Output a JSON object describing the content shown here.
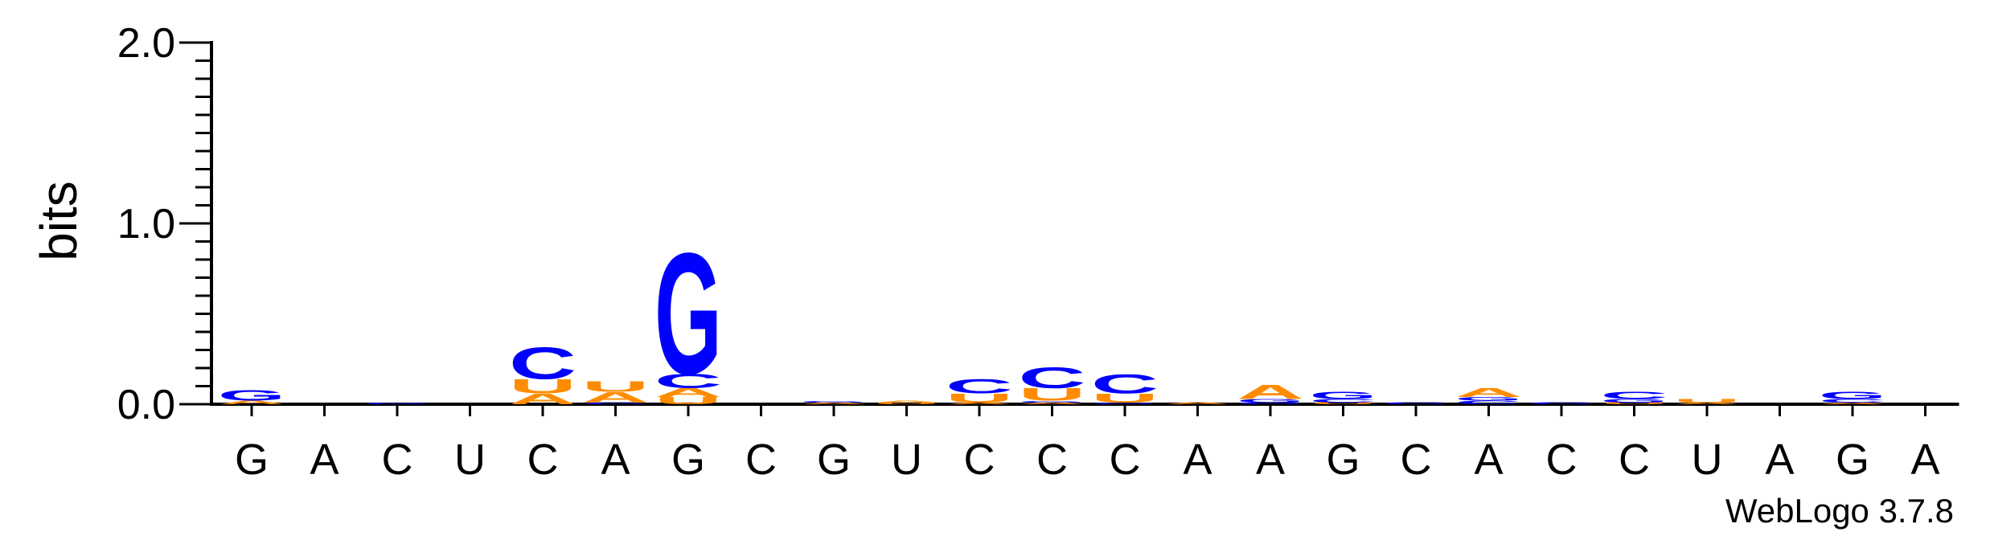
{
  "chart_data": {
    "type": "sequence-logo",
    "ylabel": "bits",
    "ylim": [
      0,
      2.0
    ],
    "yticks": [
      "0.0",
      "1.0",
      "2.0"
    ],
    "colors": {
      "G": "#0000ff",
      "C": "#0000ff",
      "A": "#ff8c00",
      "U": "#ff8c00"
    },
    "positions": [
      {
        "label": "G",
        "stack": [
          {
            "base": "A",
            "bits": 0.02
          },
          {
            "base": "G",
            "bits": 0.06
          }
        ]
      },
      {
        "label": "A",
        "stack": []
      },
      {
        "label": "C",
        "stack": [
          {
            "base": "G",
            "bits": 0.01
          }
        ]
      },
      {
        "label": "U",
        "stack": []
      },
      {
        "label": "C",
        "stack": [
          {
            "base": "A",
            "bits": 0.06
          },
          {
            "base": "U",
            "bits": 0.08
          },
          {
            "base": "C",
            "bits": 0.18
          }
        ]
      },
      {
        "label": "A",
        "stack": [
          {
            "base": "C",
            "bits": 0.01
          },
          {
            "base": "A",
            "bits": 0.06
          },
          {
            "base": "U",
            "bits": 0.06
          }
        ]
      },
      {
        "label": "G",
        "stack": [
          {
            "base": "U",
            "bits": 0.04
          },
          {
            "base": "A",
            "bits": 0.05
          },
          {
            "base": "C",
            "bits": 0.08
          },
          {
            "base": "G",
            "bits": 0.69
          }
        ]
      },
      {
        "label": "C",
        "stack": []
      },
      {
        "label": "G",
        "stack": [
          {
            "base": "A",
            "bits": 0.01
          },
          {
            "base": "G",
            "bits": 0.01
          }
        ]
      },
      {
        "label": "U",
        "stack": [
          {
            "base": "U",
            "bits": 0.01
          },
          {
            "base": "A",
            "bits": 0.01
          }
        ]
      },
      {
        "label": "C",
        "stack": [
          {
            "base": "A",
            "bits": 0.01
          },
          {
            "base": "U",
            "bits": 0.05
          },
          {
            "base": "C",
            "bits": 0.08
          }
        ]
      },
      {
        "label": "C",
        "stack": [
          {
            "base": "A",
            "bits": 0.01
          },
          {
            "base": "G",
            "bits": 0.01
          },
          {
            "base": "U",
            "bits": 0.07
          },
          {
            "base": "C",
            "bits": 0.12
          }
        ]
      },
      {
        "label": "C",
        "stack": [
          {
            "base": "G",
            "bits": 0.01
          },
          {
            "base": "U",
            "bits": 0.05
          },
          {
            "base": "C",
            "bits": 0.11
          }
        ]
      },
      {
        "label": "A",
        "stack": [
          {
            "base": "A",
            "bits": 0.01
          }
        ]
      },
      {
        "label": "A",
        "stack": [
          {
            "base": "C",
            "bits": 0.01
          },
          {
            "base": "G",
            "bits": 0.02
          },
          {
            "base": "A",
            "bits": 0.08
          }
        ]
      },
      {
        "label": "G",
        "stack": [
          {
            "base": "U",
            "bits": 0.01
          },
          {
            "base": "C",
            "bits": 0.02
          },
          {
            "base": "G",
            "bits": 0.04
          }
        ]
      },
      {
        "label": "C",
        "stack": [
          {
            "base": "C",
            "bits": 0.01
          }
        ]
      },
      {
        "label": "A",
        "stack": [
          {
            "base": "C",
            "bits": 0.02
          },
          {
            "base": "G",
            "bits": 0.02
          },
          {
            "base": "A",
            "bits": 0.05
          }
        ]
      },
      {
        "label": "C",
        "stack": [
          {
            "base": "C",
            "bits": 0.01
          }
        ]
      },
      {
        "label": "C",
        "stack": [
          {
            "base": "U",
            "bits": 0.01
          },
          {
            "base": "G",
            "bits": 0.02
          },
          {
            "base": "C",
            "bits": 0.04
          }
        ]
      },
      {
        "label": "U",
        "stack": [
          {
            "base": "A",
            "bits": 0.01
          },
          {
            "base": "U",
            "bits": 0.02
          }
        ]
      },
      {
        "label": "A",
        "stack": []
      },
      {
        "label": "G",
        "stack": [
          {
            "base": "A",
            "bits": 0.01
          },
          {
            "base": "C",
            "bits": 0.02
          },
          {
            "base": "G",
            "bits": 0.04
          }
        ]
      },
      {
        "label": "A",
        "stack": []
      }
    ],
    "credit": "WebLogo 3.7.8"
  }
}
